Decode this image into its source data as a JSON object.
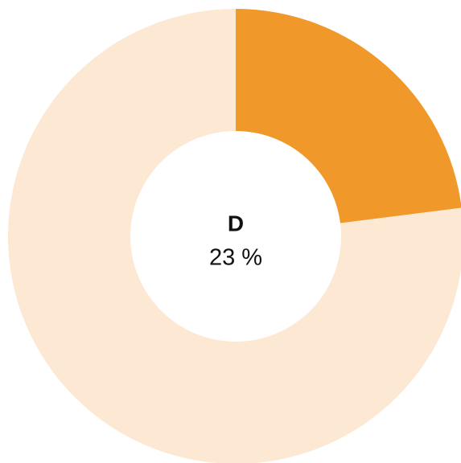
{
  "chart_data": {
    "type": "donut",
    "categories": [
      "D",
      null
    ],
    "values": [
      23,
      77
    ],
    "value_labels": [
      "23 %",
      null
    ],
    "colors": [
      "#f0992a",
      "#fce8d3"
    ]
  }
}
